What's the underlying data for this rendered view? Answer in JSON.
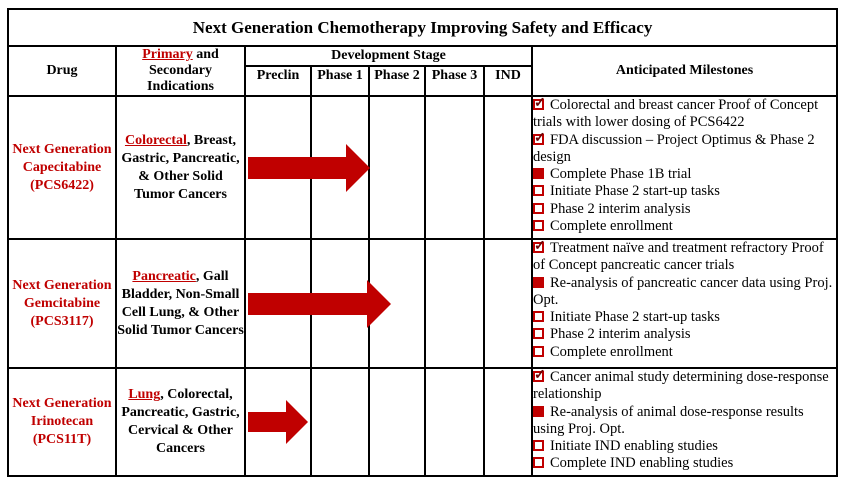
{
  "title": "Next Generation Chemotherapy Improving Safety and Efficacy",
  "colors": {
    "accent_red": "#C00000",
    "text": "#000000",
    "border": "#000000",
    "background": "#FFFFFF"
  },
  "header": {
    "drug_label": "Drug",
    "indications_primary": "Primary",
    "indications_rest": " and Secondary Indications",
    "dev_stage_label": "Development Stage",
    "stage_labels": [
      "Preclin",
      "Phase 1",
      "Phase 2",
      "Phase 3",
      "IND"
    ],
    "milestones_label": "Anticipated Milestones"
  },
  "rows": [
    {
      "drug": "Next Generation Capecitabine (PCS6422)",
      "indications_primary": "Colorectal",
      "indications_rest": ", Breast, Gastric, Pancreatic, & Other Solid Tumor Cancers",
      "arrow": {
        "from_stage": "Preclin",
        "to_stage": "Phase 2"
      },
      "milestones": [
        {
          "state": "checked",
          "text": "Colorectal and breast cancer Proof of Concept trials with lower dosing of PCS6422"
        },
        {
          "state": "checked",
          "text": "FDA discussion – Project Optimus & Phase 2 design"
        },
        {
          "state": "filled",
          "text": "Complete Phase 1B trial"
        },
        {
          "state": "empty",
          "text": "Initiate Phase 2 start-up tasks"
        },
        {
          "state": "empty",
          "text": "Phase 2 interim analysis"
        },
        {
          "state": "empty",
          "text": "Complete enrollment"
        }
      ]
    },
    {
      "drug": "Next Generation Gemcitabine (PCS3117)",
      "indications_primary": "Pancreatic",
      "indications_rest": ", Gall Bladder, Non-Small Cell Lung, & Other Solid Tumor Cancers",
      "arrow": {
        "from_stage": "Preclin",
        "to_stage": "Phase 2"
      },
      "milestones": [
        {
          "state": "checked",
          "text": "Treatment naïve and treatment refractory Proof of Concept pancreatic cancer trials"
        },
        {
          "state": "filled",
          "text": "Re-analysis of pancreatic cancer data using Proj. Opt."
        },
        {
          "state": "empty",
          "text": "Initiate Phase 2 start-up tasks"
        },
        {
          "state": "empty",
          "text": "Phase 2 interim analysis"
        },
        {
          "state": "empty",
          "text": "Complete enrollment"
        }
      ]
    },
    {
      "drug": "Next Generation Irinotecan (PCS11T)",
      "indications_primary": "Lung",
      "indications_rest": ", Colorectal, Pancreatic, Gastric, Cervical & Other Cancers",
      "arrow": {
        "from_stage": "Preclin",
        "to_stage": "Preclin"
      },
      "milestones": [
        {
          "state": "checked",
          "text": "Cancer animal study determining dose-response relationship"
        },
        {
          "state": "filled",
          "text": "Re-analysis of animal dose-response results using Proj. Opt."
        },
        {
          "state": "empty",
          "text": "Initiate IND enabling studies"
        },
        {
          "state": "empty",
          "text": "Complete IND enabling studies"
        }
      ]
    }
  ]
}
